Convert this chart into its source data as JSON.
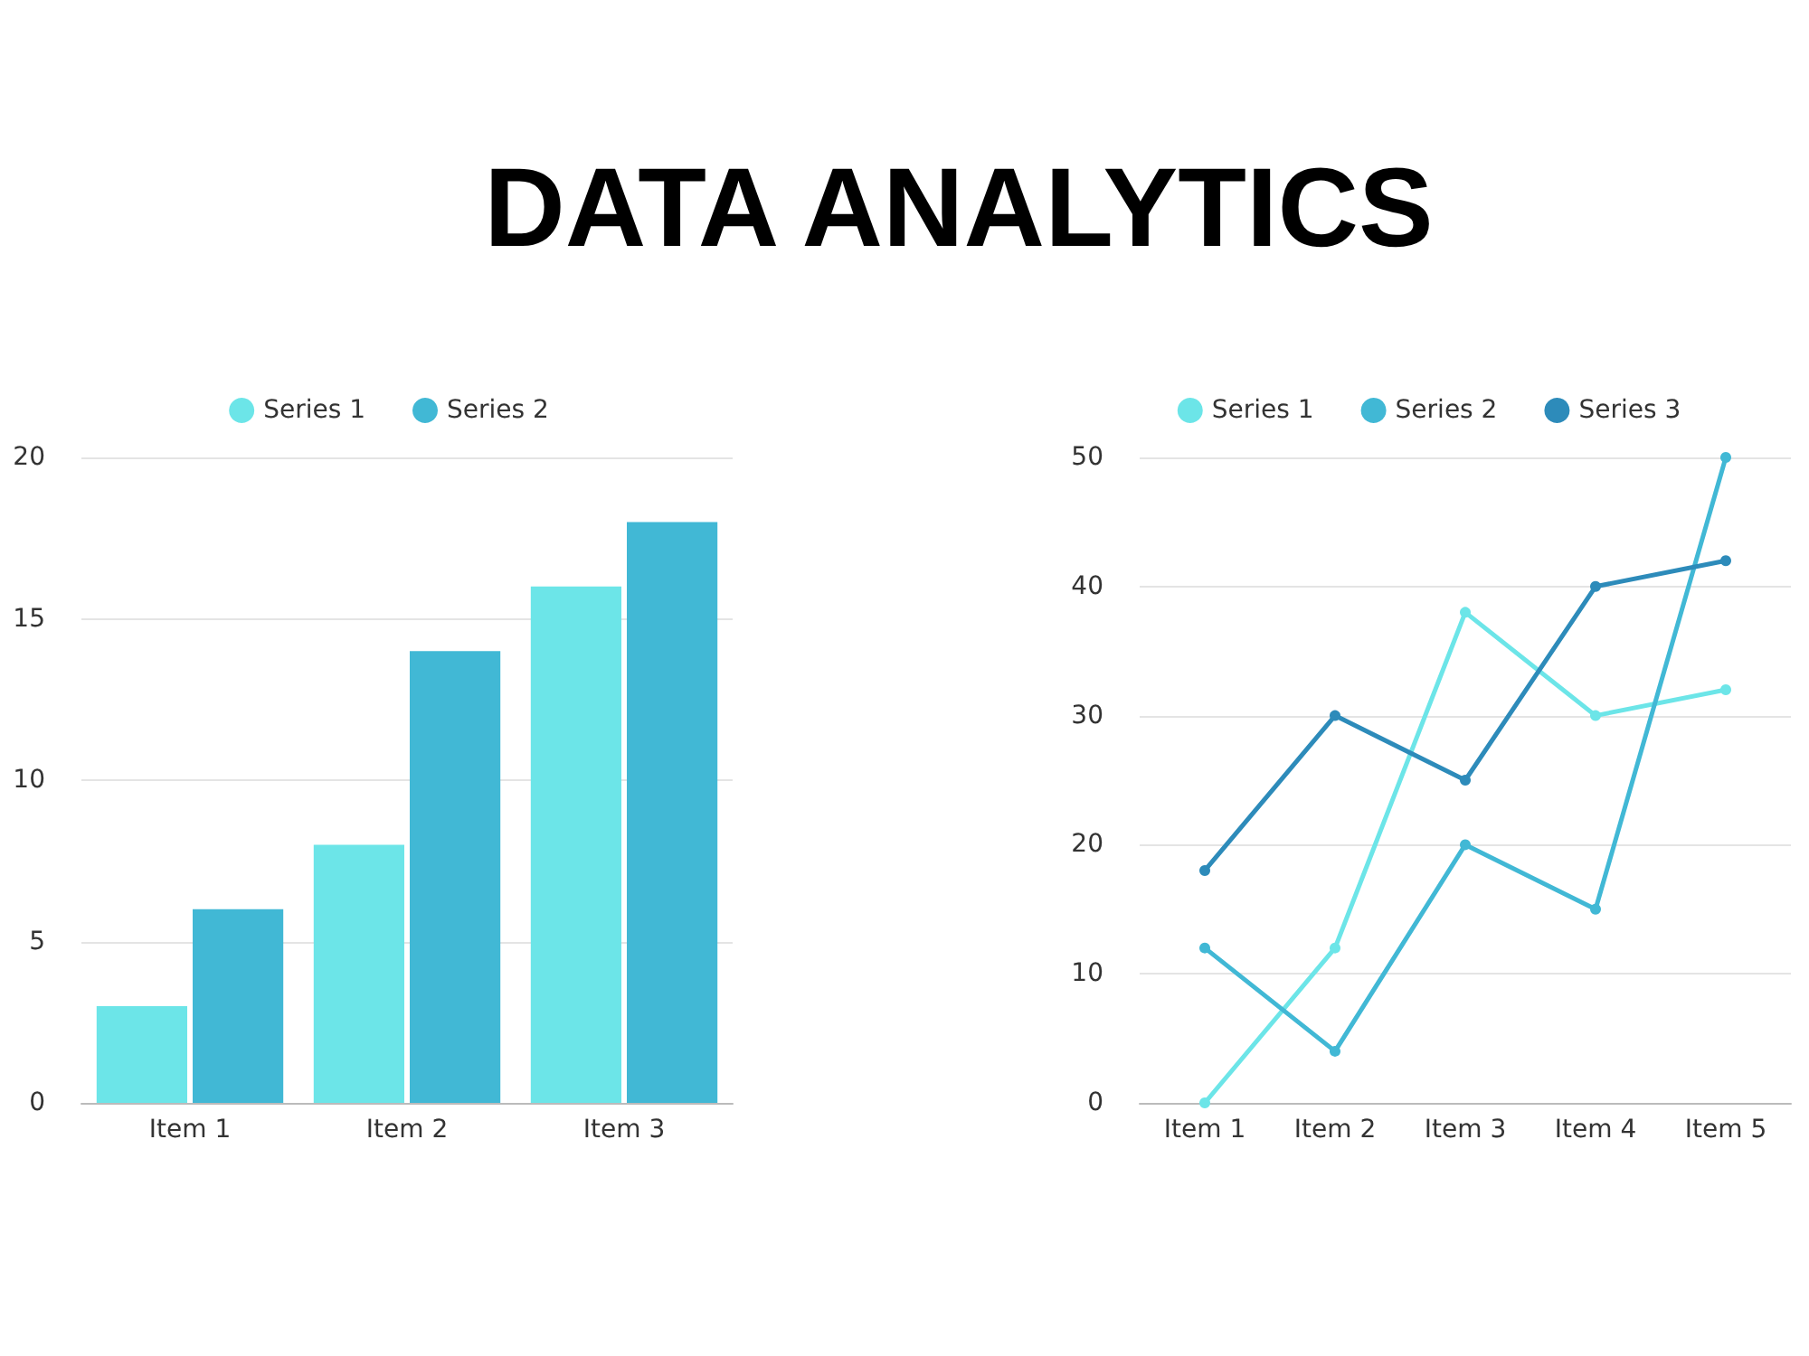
{
  "chart_data": [
    {
      "type": "bar",
      "title": "DATA ANALYTICS",
      "categories": [
        "Item 1",
        "Item 2",
        "Item 3"
      ],
      "series": [
        {
          "name": "Series 1",
          "color": "#6ce5e8",
          "values": [
            3,
            8,
            16
          ]
        },
        {
          "name": "Series 2",
          "color": "#41b8d5",
          "values": [
            6,
            14,
            18
          ]
        }
      ],
      "ylim": [
        0,
        20
      ],
      "yticks": [
        0,
        5,
        10,
        15,
        20
      ],
      "grid": "y",
      "legend": "top"
    },
    {
      "type": "line",
      "categories": [
        "Item 1",
        "Item 2",
        "Item 3",
        "Item 4",
        "Item 5"
      ],
      "series": [
        {
          "name": "Series 1",
          "color": "#6ce5e8",
          "values": [
            0,
            12,
            38,
            30,
            32
          ]
        },
        {
          "name": "Series 2",
          "color": "#41b8d5",
          "values": [
            12,
            4,
            20,
            15,
            50
          ]
        },
        {
          "name": "Series 3",
          "color": "#2d8bba",
          "values": [
            18,
            30,
            25,
            40,
            42
          ]
        }
      ],
      "ylim": [
        0,
        50
      ],
      "yticks": [
        0,
        10,
        20,
        30,
        40,
        50
      ],
      "grid": "y",
      "legend": "top",
      "marker": "circle",
      "line_style": "solid"
    }
  ]
}
